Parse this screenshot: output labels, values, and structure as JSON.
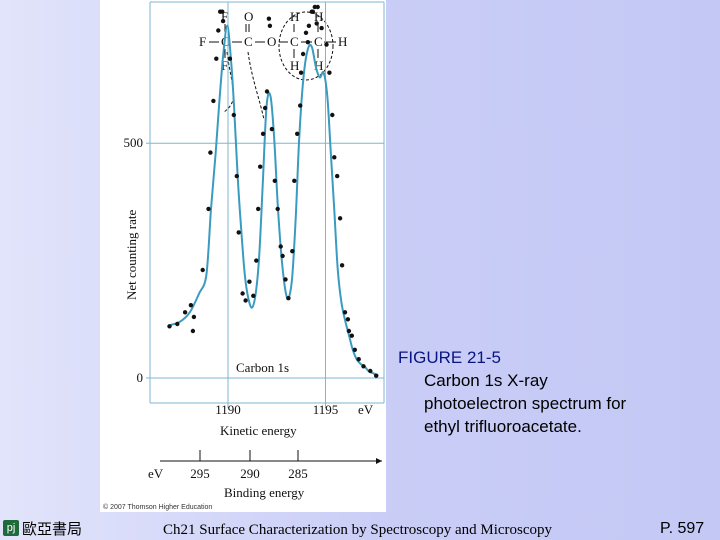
{
  "figure": {
    "molecule": {
      "top_row": [
        "F",
        "O",
        "H",
        "H"
      ],
      "middle_row": [
        "F",
        "C",
        "C",
        "O",
        "C",
        "C",
        "H"
      ],
      "bottom_row": [
        "F",
        "H",
        "H"
      ]
    },
    "peak_label": "Carbon 1s",
    "copyright": "© 2007 Thomson Higher Education"
  },
  "chart_data": {
    "type": "scatter",
    "ylabel": "Net counting rate",
    "xlabel": "Kinetic energy",
    "x_unit": "eV",
    "x_ticks": [
      "1190",
      "1195"
    ],
    "y_ticks": [
      "0",
      "500"
    ],
    "xlim": [
      1186,
      1198
    ],
    "ylim": [
      0,
      790
    ],
    "binding_axis": {
      "label": "Binding energy",
      "unit": "eV",
      "ticks": [
        "295",
        "290",
        "285"
      ]
    },
    "grid": false,
    "series": [
      {
        "fit_curve": true,
        "x": [
          1187.06,
          1187.55,
          1188.04,
          1188.52,
          1188.89,
          1189.13,
          1189.37,
          1189.56,
          1189.76,
          1189.96,
          1190.13,
          1190.31,
          1190.48,
          1190.67,
          1190.86,
          1191.04,
          1191.23,
          1191.42,
          1191.6,
          1191.79,
          1191.98,
          1192.18,
          1192.37,
          1192.55,
          1192.74,
          1192.93,
          1193.09,
          1193.28,
          1193.47,
          1193.65,
          1193.87,
          1194.09,
          1194.3,
          1194.52,
          1194.71,
          1194.9,
          1195.09,
          1195.27,
          1195.46,
          1195.63,
          1195.82,
          1196.02,
          1196.21,
          1196.4,
          1196.6,
          1196.8,
          1197.0,
          1197.2,
          1197.45,
          1197.7
        ],
        "y": [
          113,
          120,
          140,
          180,
          220,
          360,
          480,
          590,
          690,
          750,
          690,
          580,
          440,
          320,
          220,
          170,
          150,
          180,
          260,
          420,
          580,
          600,
          510,
          370,
          260,
          190,
          170,
          210,
          340,
          510,
          640,
          700,
          705,
          660,
          640,
          650,
          600,
          480,
          350,
          230,
          160,
          120,
          90,
          60,
          40,
          30,
          25,
          15,
          10,
          5
        ]
      }
    ],
    "points": [
      [
        1187.0,
        110
      ],
      [
        1187.4,
        115
      ],
      [
        1187.8,
        140
      ],
      [
        1188.1,
        155
      ],
      [
        1188.25,
        130
      ],
      [
        1188.2,
        100
      ],
      [
        1188.7,
        230
      ],
      [
        1189.0,
        360
      ],
      [
        1189.1,
        480
      ],
      [
        1189.25,
        590
      ],
      [
        1189.4,
        680
      ],
      [
        1189.5,
        740
      ],
      [
        1189.6,
        780
      ],
      [
        1189.7,
        780
      ],
      [
        1189.75,
        760
      ],
      [
        1190.1,
        680
      ],
      [
        1190.3,
        560
      ],
      [
        1190.45,
        430
      ],
      [
        1190.55,
        310
      ],
      [
        1190.75,
        180
      ],
      [
        1190.9,
        165
      ],
      [
        1191.1,
        205
      ],
      [
        1191.3,
        175
      ],
      [
        1191.45,
        250
      ],
      [
        1191.55,
        360
      ],
      [
        1191.65,
        450
      ],
      [
        1191.8,
        520
      ],
      [
        1191.9,
        575
      ],
      [
        1192.0,
        610
      ],
      [
        1192.1,
        765
      ],
      [
        1192.15,
        750
      ],
      [
        1192.25,
        530
      ],
      [
        1192.4,
        420
      ],
      [
        1192.55,
        360
      ],
      [
        1192.7,
        280
      ],
      [
        1192.8,
        260
      ],
      [
        1192.95,
        210
      ],
      [
        1193.1,
        170
      ],
      [
        1193.3,
        270
      ],
      [
        1193.4,
        420
      ],
      [
        1193.55,
        520
      ],
      [
        1193.7,
        580
      ],
      [
        1193.75,
        650
      ],
      [
        1193.85,
        690
      ],
      [
        1194.0,
        735
      ],
      [
        1194.15,
        750
      ],
      [
        1194.1,
        715
      ],
      [
        1194.3,
        780
      ],
      [
        1194.35,
        780
      ],
      [
        1194.45,
        790
      ],
      [
        1194.6,
        790
      ],
      [
        1194.55,
        755
      ],
      [
        1194.8,
        745
      ],
      [
        1195.05,
        710
      ],
      [
        1195.2,
        650
      ],
      [
        1195.35,
        560
      ],
      [
        1195.45,
        470
      ],
      [
        1195.6,
        430
      ],
      [
        1195.75,
        340
      ],
      [
        1195.85,
        240
      ],
      [
        1196.0,
        140
      ],
      [
        1196.15,
        125
      ],
      [
        1196.2,
        100
      ],
      [
        1196.35,
        90
      ],
      [
        1196.5,
        60
      ],
      [
        1196.7,
        40
      ],
      [
        1196.95,
        25
      ],
      [
        1197.3,
        15
      ],
      [
        1197.6,
        5
      ]
    ]
  },
  "caption": {
    "title": "FIGURE 21-5",
    "line1": "Carbon 1s X-ray",
    "line2": "photoelectron spectrum for",
    "line3": "ethyl trifluoroacetate."
  },
  "footer": {
    "publisher": "歐亞書局",
    "logo_glyph": "pj",
    "center_text": "Ch21 Surface Characterization by Spectroscopy and Microscopy",
    "page": "P. 597"
  },
  "colors": {
    "curve": "#3a9bc0",
    "points": "#111111",
    "caption_title": "#0a1580"
  }
}
